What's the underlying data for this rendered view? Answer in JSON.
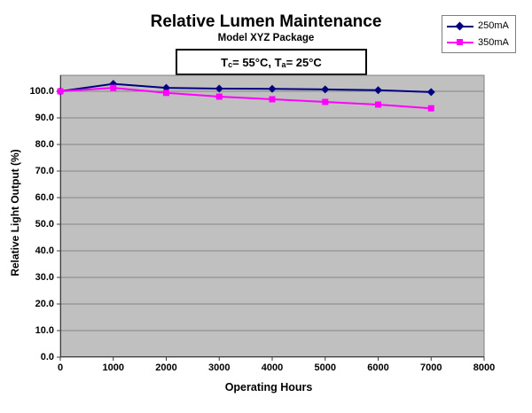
{
  "chart_data": {
    "type": "line",
    "title": "Relative Lumen Maintenance",
    "subtitle": "Model XYZ Package",
    "annotation": {
      "segments": [
        {
          "t": "T"
        },
        {
          "s": "c"
        },
        {
          "t": " = 55°C, T"
        },
        {
          "s": "a"
        },
        {
          "t": " = 25°C"
        }
      ]
    },
    "xlabel": "Operating Hours",
    "ylabel": "Relative Light Output (%)",
    "x": [
      0,
      1000,
      2000,
      3000,
      4000,
      5000,
      6000,
      7000
    ],
    "series": [
      {
        "name": "250mA",
        "color": "#000080",
        "marker": "diamond",
        "values": [
          100.0,
          102.8,
          101.3,
          101.0,
          100.9,
          100.7,
          100.4,
          99.7
        ]
      },
      {
        "name": "350mA",
        "color": "#FF00FF",
        "marker": "square",
        "values": [
          100.0,
          101.3,
          99.4,
          98.0,
          97.0,
          96.0,
          95.0,
          93.6
        ]
      }
    ],
    "xlim": [
      0,
      8000
    ],
    "ylim": [
      0,
      106
    ],
    "xtick_labels": [
      "0",
      "1000",
      "2000",
      "3000",
      "4000",
      "5000",
      "6000",
      "7000",
      "8000"
    ],
    "ytick_labels": [
      "0.0",
      "10.0",
      "20.0",
      "30.0",
      "40.0",
      "50.0",
      "60.0",
      "70.0",
      "80.0",
      "90.0",
      "100.0"
    ],
    "grid": "horizontal",
    "legend_position": "top-right",
    "plot_bg": "#C0C0C0",
    "grid_color": "#868686",
    "plot_border_color": "#7f7f7f",
    "axis_color": "#3c3c3c"
  }
}
